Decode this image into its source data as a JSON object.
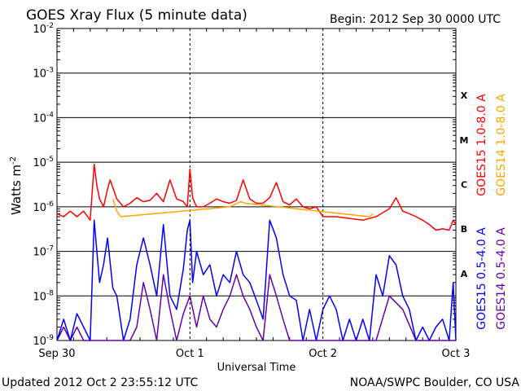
{
  "header": {
    "title": "GOES Xray Flux (5 minute data)",
    "begin": "Begin:  2012 Sep 30 0000 UTC"
  },
  "footer": {
    "updated": "Updated 2012 Oct  2 23:55:12 UTC",
    "credit": "NOAA/SWPC Boulder, CO USA"
  },
  "colors": {
    "goes15_long": "#ff0000",
    "goes14_long": "#ffa500",
    "goes15_short": "#0000ff",
    "goes14_short": "#6600aa"
  },
  "chart_data": {
    "type": "line",
    "xlabel": "Universal Time",
    "ylabel": "Watts m",
    "ylabel_exponent": "-2",
    "yscale": "log",
    "ylim": [
      1e-09,
      0.01
    ],
    "xlim": [
      "2012-09-30",
      "2012-10-03"
    ],
    "grid": true,
    "y_ticks": [
      {
        "base": "10",
        "exp": "-9"
      },
      {
        "base": "10",
        "exp": "-8"
      },
      {
        "base": "10",
        "exp": "-7"
      },
      {
        "base": "10",
        "exp": "-6"
      },
      {
        "base": "10",
        "exp": "-5"
      },
      {
        "base": "10",
        "exp": "-4"
      },
      {
        "base": "10",
        "exp": "-3"
      },
      {
        "base": "10",
        "exp": "-2"
      }
    ],
    "x_ticks": [
      "Sep 30",
      "Oct 1",
      "Oct 2",
      "Oct 3"
    ],
    "flare_classes": [
      {
        "label": "X",
        "value": 0.0001
      },
      {
        "label": "M",
        "value": 1e-05
      },
      {
        "label": "C",
        "value": 1e-06
      },
      {
        "label": "B",
        "value": 1e-07
      },
      {
        "label": "A",
        "value": 1e-08
      }
    ],
    "series": [
      {
        "name": "GOES15 1.0-8.0 A",
        "color": "#ff0000",
        "x": [
          0,
          0.05,
          0.1,
          0.15,
          0.2,
          0.25,
          0.28,
          0.3,
          0.32,
          0.35,
          0.38,
          0.4,
          0.45,
          0.5,
          0.55,
          0.6,
          0.65,
          0.7,
          0.75,
          0.8,
          0.85,
          0.9,
          0.95,
          0.98,
          1.0,
          1.02,
          1.05,
          1.1,
          1.15,
          1.2,
          1.25,
          1.3,
          1.35,
          1.4,
          1.45,
          1.5,
          1.55,
          1.6,
          1.65,
          1.7,
          1.75,
          1.8,
          1.85,
          1.9,
          1.95,
          2.0,
          2.1,
          2.2,
          2.3,
          2.4,
          2.5,
          2.55,
          2.6,
          2.65,
          2.7,
          2.75,
          2.8,
          2.85,
          2.9,
          2.95,
          2.98,
          3.0
        ],
        "y": [
          7e-07,
          6e-07,
          8e-07,
          6e-07,
          8e-07,
          5e-07,
          9e-06,
          3e-06,
          1.5e-06,
          1e-06,
          2.5e-06,
          4e-06,
          1.5e-06,
          1e-06,
          1.2e-06,
          1.6e-06,
          1.3e-06,
          1.4e-06,
          2e-06,
          1.3e-06,
          4e-06,
          1.5e-06,
          1.3e-06,
          1e-06,
          7e-06,
          1.6e-06,
          1e-06,
          1e-06,
          1.2e-06,
          1.5e-06,
          1.3e-06,
          1.2e-06,
          1.4e-06,
          4e-06,
          1.5e-06,
          1.2e-06,
          1.2e-06,
          1.6e-06,
          3.5e-06,
          1.3e-06,
          1.1e-06,
          1.5e-06,
          1e-06,
          9e-07,
          1e-06,
          6e-07,
          6e-07,
          5.5e-07,
          5e-07,
          6e-07,
          9e-07,
          1.6e-06,
          8e-07,
          7e-07,
          6e-07,
          5e-07,
          4e-07,
          3e-07,
          3.2e-07,
          3e-07,
          5e-07,
          4e-07
        ]
      },
      {
        "name": "GOES14 1.0-8.0 A",
        "color": "#ffa500",
        "x": [
          0.42,
          0.45,
          0.48,
          1.3,
          1.38,
          1.42,
          2.35,
          2.38
        ],
        "y": [
          1.5e-06,
          8e-07,
          6e-07,
          1e-06,
          1.3e-06,
          1.2e-06,
          6e-07,
          7e-07
        ]
      },
      {
        "name": "GOES15 0.5-4.0 A",
        "color": "#0000ff",
        "x": [
          0,
          0.05,
          0.1,
          0.15,
          0.2,
          0.25,
          0.28,
          0.3,
          0.32,
          0.35,
          0.38,
          0.42,
          0.45,
          0.5,
          0.55,
          0.6,
          0.65,
          0.7,
          0.75,
          0.8,
          0.85,
          0.9,
          0.95,
          0.98,
          1.0,
          1.02,
          1.05,
          1.1,
          1.15,
          1.2,
          1.25,
          1.3,
          1.35,
          1.4,
          1.45,
          1.5,
          1.55,
          1.6,
          1.65,
          1.7,
          1.75,
          1.8,
          1.85,
          1.9,
          1.95,
          2.0,
          2.05,
          2.1,
          2.15,
          2.2,
          2.25,
          2.3,
          2.35,
          2.4,
          2.45,
          2.5,
          2.55,
          2.6,
          2.65,
          2.7,
          2.75,
          2.8,
          2.85,
          2.9,
          2.95,
          2.98,
          3.0
        ],
        "y": [
          1e-09,
          3e-09,
          1e-09,
          4e-09,
          2e-09,
          1e-09,
          5e-07,
          1e-07,
          2e-08,
          5e-08,
          2e-07,
          1.5e-08,
          1e-08,
          1e-09,
          3e-09,
          5e-08,
          2e-07,
          5e-08,
          1e-08,
          4e-07,
          1e-08,
          5e-09,
          4e-08,
          3e-07,
          5e-07,
          2e-08,
          1e-07,
          3e-08,
          5e-08,
          1e-08,
          3e-08,
          2e-08,
          1e-07,
          3e-08,
          2e-08,
          8e-09,
          3e-09,
          5e-07,
          2e-07,
          3e-08,
          1e-08,
          8e-09,
          1e-09,
          5e-09,
          1e-09,
          5e-09,
          1e-08,
          5e-09,
          1e-09,
          3e-09,
          1e-09,
          3e-09,
          1e-09,
          3e-08,
          1e-08,
          8e-08,
          5e-08,
          1e-08,
          5e-09,
          1e-09,
          2e-09,
          1e-09,
          2e-09,
          3e-09,
          1e-09,
          2e-08,
          1e-09
        ]
      },
      {
        "name": "GOES14 0.5-4.0 A",
        "color": "#6600aa",
        "x": [
          0,
          0.05,
          0.1,
          0.15,
          0.2,
          0.25,
          0.3,
          0.35,
          0.4,
          0.45,
          0.5,
          0.55,
          0.6,
          0.65,
          0.7,
          0.75,
          0.8,
          0.85,
          0.9,
          0.95,
          1.0,
          1.05,
          1.1,
          1.15,
          1.2,
          1.25,
          1.3,
          1.35,
          1.4,
          1.45,
          1.5,
          1.55,
          1.6,
          1.65,
          1.7,
          1.75,
          1.8,
          1.85,
          1.9,
          1.95,
          2.0,
          2.1,
          2.2,
          2.3,
          2.4,
          2.5,
          2.6,
          2.7,
          2.8,
          2.9,
          3.0
        ],
        "y": [
          1e-09,
          2e-09,
          1e-09,
          2e-09,
          1e-09,
          1e-09,
          1e-09,
          1e-09,
          1e-09,
          1e-09,
          1e-09,
          1e-09,
          2e-09,
          2e-08,
          5e-09,
          1e-09,
          3e-08,
          5e-09,
          1e-09,
          4e-09,
          1e-08,
          2e-09,
          1e-08,
          3e-09,
          2e-09,
          5e-09,
          1e-08,
          3e-08,
          1e-08,
          5e-09,
          2e-09,
          1e-09,
          3e-08,
          1e-08,
          3e-09,
          1e-09,
          1e-09,
          1e-09,
          1e-09,
          1e-09,
          1e-09,
          1e-09,
          1e-09,
          1e-09,
          1e-09,
          1e-08,
          5e-09,
          1e-09,
          1e-09,
          1e-09,
          1e-09
        ]
      }
    ]
  }
}
